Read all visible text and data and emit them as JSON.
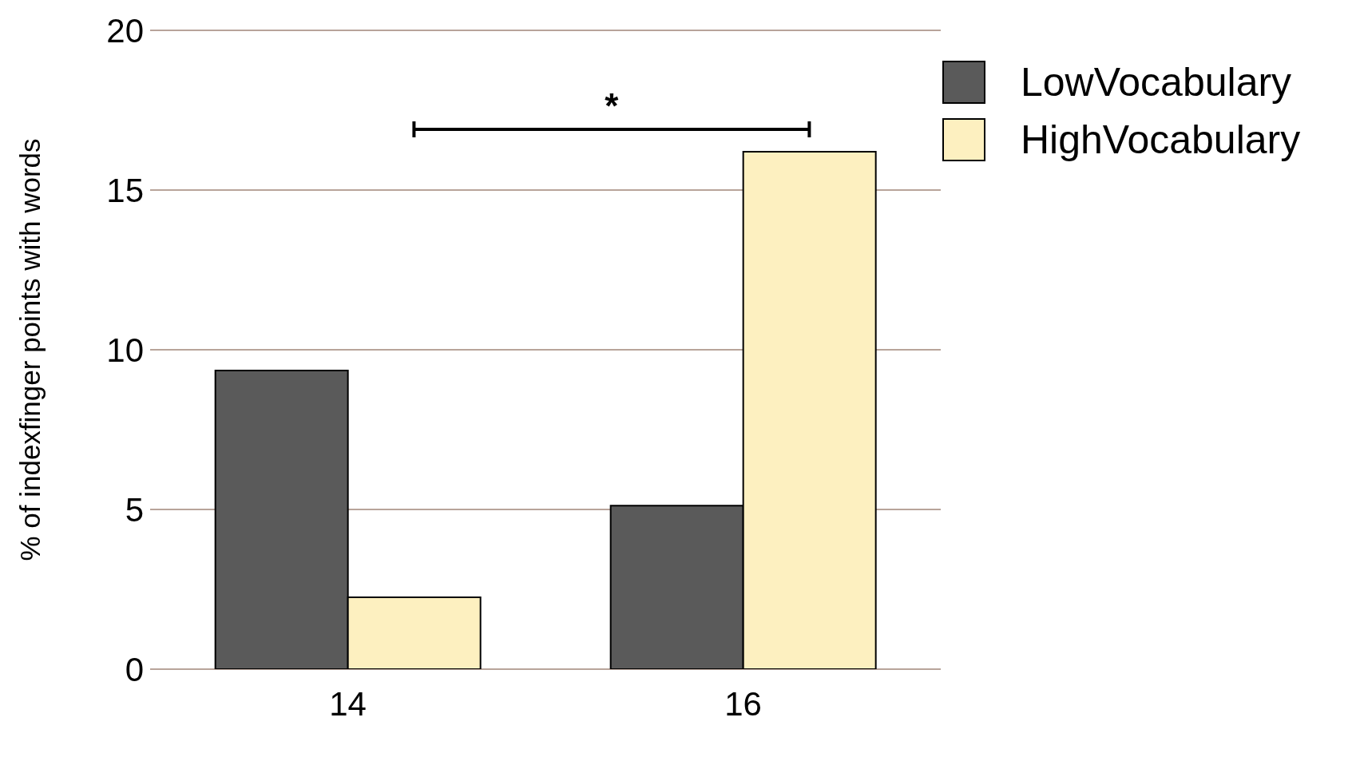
{
  "chart_data": {
    "type": "bar",
    "ylabel": "% of indexfinger points with words",
    "categories": [
      "14",
      "16"
    ],
    "series": [
      {
        "name": "LowVocabulary",
        "color": "#5a5a5a",
        "values": [
          9.35,
          5.12
        ]
      },
      {
        "name": "HighVocabulary",
        "color": "#fdf0c0",
        "values": [
          2.25,
          16.2
        ]
      }
    ],
    "ylim": [
      0,
      20
    ],
    "yticks": [
      0,
      5,
      10,
      15,
      20
    ],
    "grid": "y",
    "legend": "top right",
    "annotations": [
      "*"
    ]
  }
}
